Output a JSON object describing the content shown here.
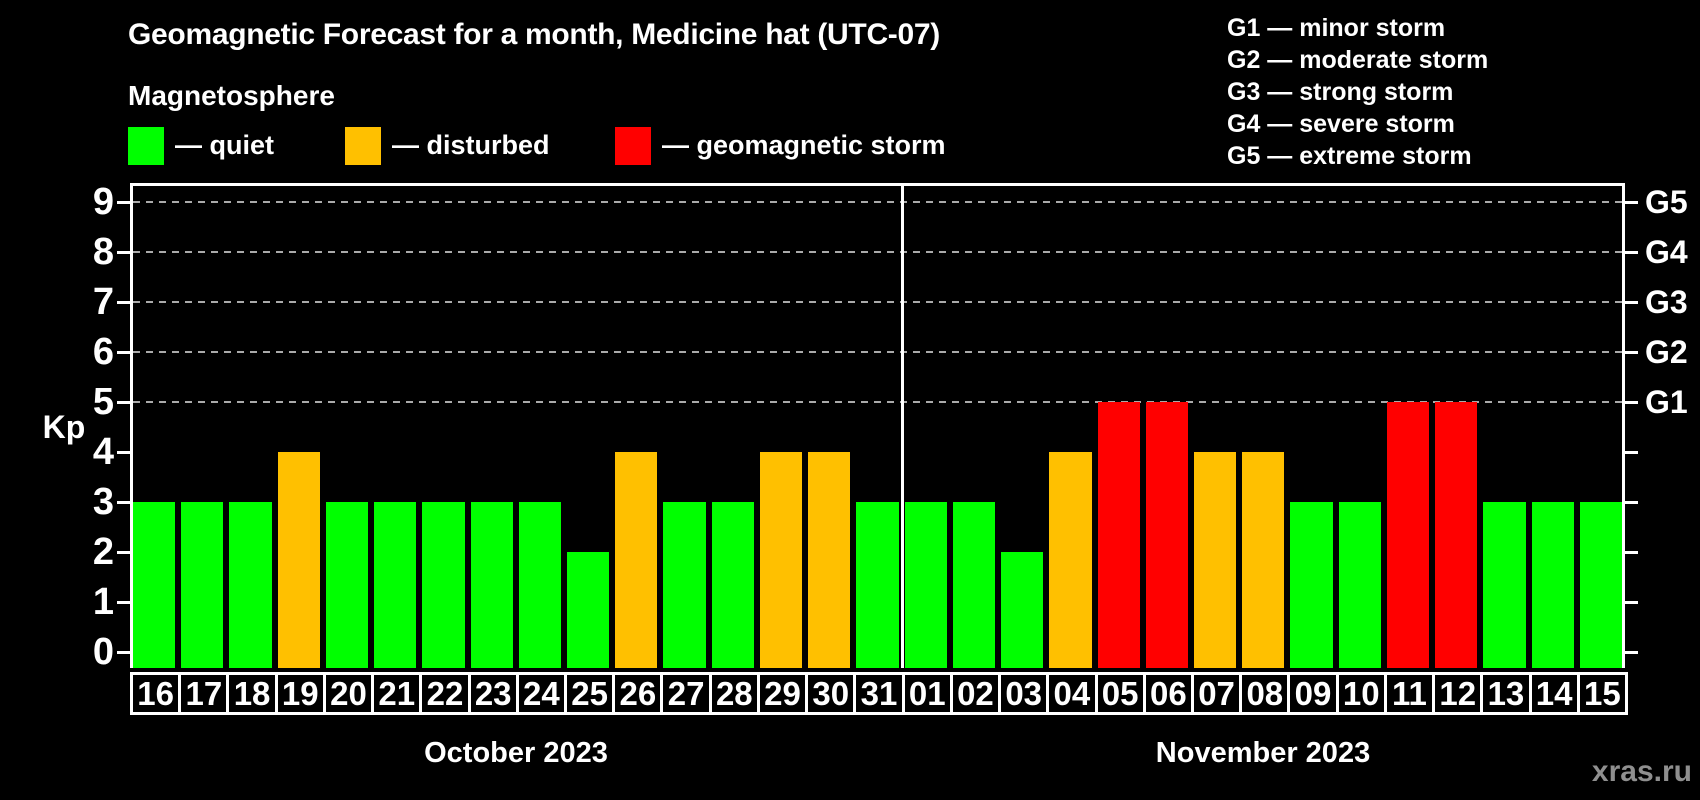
{
  "header": {
    "title": "Geomagnetic Forecast for a month, Medicine hat (UTC-07)",
    "subtitle": "Magnetosphere"
  },
  "legend": {
    "items": [
      {
        "name": "quiet",
        "label": "— quiet",
        "color": "#00ff00"
      },
      {
        "name": "disturbed",
        "label": "— disturbed",
        "color": "#ffc000"
      },
      {
        "name": "storm",
        "label": "— geomagnetic storm",
        "color": "#ff0000"
      }
    ]
  },
  "storm_scale_legend": {
    "items": [
      "G1 — minor storm",
      "G2 — moderate storm",
      "G3 — strong storm",
      "G4 — severe storm",
      "G5 — extreme storm"
    ]
  },
  "watermark": "xras.ru",
  "chart_data": {
    "type": "bar",
    "title": "Geomagnetic Forecast for a month, Medicine hat (UTC-07)",
    "ylabel": "Kp",
    "ylim": [
      0,
      9
    ],
    "y_ticks": [
      0,
      1,
      2,
      3,
      4,
      5,
      6,
      7,
      8,
      9
    ],
    "grid_kp_levels": [
      5,
      6,
      7,
      8,
      9
    ],
    "right_axis": [
      {
        "kp": 5,
        "label": "G1"
      },
      {
        "kp": 6,
        "label": "G2"
      },
      {
        "kp": 7,
        "label": "G3"
      },
      {
        "kp": 8,
        "label": "G4"
      },
      {
        "kp": 9,
        "label": "G5"
      }
    ],
    "status_colors": {
      "quiet": "#00ff00",
      "disturbed": "#ffc000",
      "storm": "#ff0000"
    },
    "months": [
      {
        "label": "October 2023",
        "days": [
          {
            "day": "16",
            "kp": 3,
            "status": "quiet"
          },
          {
            "day": "17",
            "kp": 3,
            "status": "quiet"
          },
          {
            "day": "18",
            "kp": 3,
            "status": "quiet"
          },
          {
            "day": "19",
            "kp": 4,
            "status": "disturbed"
          },
          {
            "day": "20",
            "kp": 3,
            "status": "quiet"
          },
          {
            "day": "21",
            "kp": 3,
            "status": "quiet"
          },
          {
            "day": "22",
            "kp": 3,
            "status": "quiet"
          },
          {
            "day": "23",
            "kp": 3,
            "status": "quiet"
          },
          {
            "day": "24",
            "kp": 3,
            "status": "quiet"
          },
          {
            "day": "25",
            "kp": 2,
            "status": "quiet"
          },
          {
            "day": "26",
            "kp": 4,
            "status": "disturbed"
          },
          {
            "day": "27",
            "kp": 3,
            "status": "quiet"
          },
          {
            "day": "28",
            "kp": 3,
            "status": "quiet"
          },
          {
            "day": "29",
            "kp": 4,
            "status": "disturbed"
          },
          {
            "day": "30",
            "kp": 4,
            "status": "disturbed"
          },
          {
            "day": "31",
            "kp": 3,
            "status": "quiet"
          }
        ]
      },
      {
        "label": "November 2023",
        "days": [
          {
            "day": "01",
            "kp": 3,
            "status": "quiet"
          },
          {
            "day": "02",
            "kp": 3,
            "status": "quiet"
          },
          {
            "day": "03",
            "kp": 2,
            "status": "quiet"
          },
          {
            "day": "04",
            "kp": 4,
            "status": "disturbed"
          },
          {
            "day": "05",
            "kp": 5,
            "status": "storm"
          },
          {
            "day": "06",
            "kp": 5,
            "status": "storm"
          },
          {
            "day": "07",
            "kp": 4,
            "status": "disturbed"
          },
          {
            "day": "08",
            "kp": 4,
            "status": "disturbed"
          },
          {
            "day": "09",
            "kp": 3,
            "status": "quiet"
          },
          {
            "day": "10",
            "kp": 3,
            "status": "quiet"
          },
          {
            "day": "11",
            "kp": 5,
            "status": "storm"
          },
          {
            "day": "12",
            "kp": 5,
            "status": "storm"
          },
          {
            "day": "13",
            "kp": 3,
            "status": "quiet"
          },
          {
            "day": "14",
            "kp": 3,
            "status": "quiet"
          },
          {
            "day": "15",
            "kp": 3,
            "status": "quiet"
          }
        ]
      }
    ]
  }
}
